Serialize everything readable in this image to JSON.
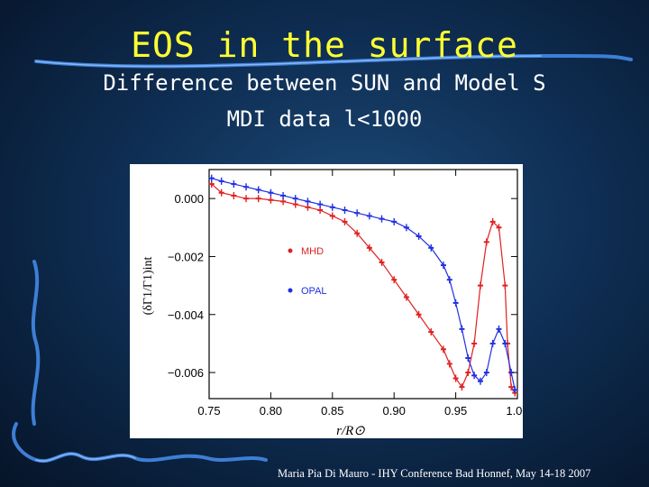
{
  "slide": {
    "title": "EOS in the surface",
    "subtitle_line1": "Difference between SUN and Model S",
    "subtitle_line2": "MDI data l<1000",
    "footer": "Maria Pia Di Mauro - IHY Conference  Bad Honnef, May 14-18 2007",
    "colors": {
      "title": "#ffff33",
      "text": "#ffffff",
      "background": "#0f2f55",
      "decoration": "#3d7fd6"
    }
  },
  "chart_data": {
    "type": "scatter",
    "xlabel": "r/R⊙",
    "ylabel": "(δΓ1/Γ1)int",
    "xlim": [
      0.75,
      1.0
    ],
    "ylim": [
      -0.0069,
      0.001
    ],
    "xticks": [
      0.75,
      0.8,
      0.85,
      0.9,
      0.95,
      1.0
    ],
    "xtick_labels": [
      "0.75",
      "0.80",
      "0.85",
      "0.90",
      "0.95",
      "1.00"
    ],
    "yticks": [
      0.0,
      -0.002,
      -0.004,
      -0.006
    ],
    "ytick_labels": [
      "0.000",
      "−0.002",
      "−0.004",
      "−0.006"
    ],
    "grid": false,
    "legend_position": "center",
    "series": [
      {
        "name": "MHD",
        "color": "#e02020",
        "x": [
          0.752,
          0.76,
          0.77,
          0.78,
          0.79,
          0.8,
          0.81,
          0.82,
          0.83,
          0.84,
          0.85,
          0.86,
          0.87,
          0.88,
          0.89,
          0.9,
          0.91,
          0.92,
          0.93,
          0.94,
          0.945,
          0.95,
          0.955,
          0.96,
          0.965,
          0.97,
          0.975,
          0.98,
          0.985,
          0.99,
          0.992,
          0.995,
          0.998
        ],
        "y": [
          0.0005,
          0.0002,
          0.0001,
          0.0,
          0.0,
          -5e-05,
          -0.0001,
          -0.0002,
          -0.0003,
          -0.0004,
          -0.0006,
          -0.0008,
          -0.0012,
          -0.0017,
          -0.0022,
          -0.0028,
          -0.0034,
          -0.004,
          -0.0046,
          -0.0052,
          -0.0057,
          -0.0062,
          -0.0065,
          -0.006,
          -0.005,
          -0.003,
          -0.0015,
          -0.0008,
          -0.001,
          -0.003,
          -0.005,
          -0.0065,
          -0.0067
        ]
      },
      {
        "name": "OPAL",
        "color": "#2030e0",
        "x": [
          0.752,
          0.76,
          0.77,
          0.78,
          0.79,
          0.8,
          0.81,
          0.82,
          0.83,
          0.84,
          0.85,
          0.86,
          0.87,
          0.88,
          0.89,
          0.9,
          0.91,
          0.92,
          0.93,
          0.94,
          0.945,
          0.95,
          0.955,
          0.96,
          0.965,
          0.97,
          0.975,
          0.98,
          0.985,
          0.99,
          0.995,
          0.998
        ],
        "y": [
          0.0007,
          0.0006,
          0.0005,
          0.0004,
          0.0003,
          0.0002,
          0.0001,
          0.0,
          -0.0001,
          -0.0002,
          -0.0003,
          -0.0004,
          -0.0005,
          -0.0006,
          -0.0007,
          -0.0008,
          -0.001,
          -0.0013,
          -0.0017,
          -0.0023,
          -0.0028,
          -0.0036,
          -0.0045,
          -0.0055,
          -0.0061,
          -0.0063,
          -0.006,
          -0.005,
          -0.0045,
          -0.005,
          -0.006,
          -0.0066
        ]
      }
    ]
  }
}
